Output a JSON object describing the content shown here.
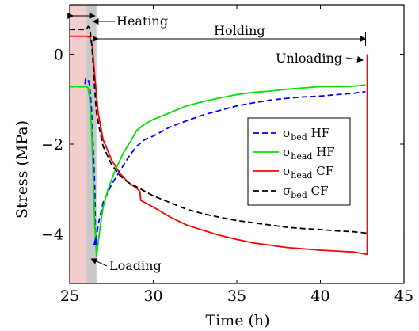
{
  "chart_data": {
    "type": "line",
    "xlabel": "Time (h)",
    "ylabel": "Stress (MPa)",
    "xlim": [
      25,
      45
    ],
    "ylim": [
      -5.1,
      1.1
    ],
    "xticks": [
      25,
      30,
      35,
      40,
      45
    ],
    "yticks": [
      0,
      -2,
      -4
    ],
    "grid": false,
    "legend_position": "right, below upper curves",
    "regions": [
      {
        "x": [
          25.0,
          26.0
        ],
        "color": "#f5cccc"
      },
      {
        "x": [
          26.0,
          26.6
        ],
        "color": "#c8c8c8"
      }
    ],
    "annotations": {
      "heating": "Heating",
      "holding": "Holding",
      "unloading": "Unloading",
      "loading": "Loading"
    },
    "series": [
      {
        "name": "σ_bed HF",
        "color": "#0000ff",
        "dash": "dashed",
        "x": [
          25.0,
          25.9,
          25.95,
          26.0,
          26.1,
          26.2,
          26.3,
          26.4,
          26.5,
          26.55,
          26.7,
          27.0,
          27.5,
          28.0,
          28.5,
          29.0,
          29.5,
          30.0,
          31.0,
          32.0,
          33.0,
          34.0,
          35.0,
          36.0,
          37.0,
          38.0,
          39.0,
          40.0,
          41.0,
          42.0,
          42.7
        ],
        "y": [
          -0.72,
          -0.72,
          -0.55,
          -0.55,
          -0.56,
          -0.7,
          -1.2,
          -2.0,
          -3.0,
          -4.2,
          -3.8,
          -3.3,
          -2.9,
          -2.6,
          -2.3,
          -2.05,
          -1.9,
          -1.82,
          -1.62,
          -1.48,
          -1.35,
          -1.25,
          -1.15,
          -1.08,
          -1.02,
          -0.98,
          -0.95,
          -0.93,
          -0.9,
          -0.87,
          -0.83
        ]
      },
      {
        "name": "σ_head HF",
        "color": "#00e000",
        "dash": "solid",
        "x": [
          25.0,
          26.0,
          26.1,
          26.2,
          26.3,
          26.4,
          26.5,
          26.6,
          26.8,
          27.0,
          27.3,
          27.7,
          28.2,
          28.7,
          29.0,
          29.5,
          30.0,
          31.0,
          32.0,
          33.0,
          34.0,
          35.0,
          36.0,
          37.0,
          38.0,
          39.0,
          40.0,
          41.0,
          42.0,
          42.7
        ],
        "y": [
          -0.72,
          -0.72,
          -0.75,
          -1.0,
          -1.6,
          -2.6,
          -3.8,
          -4.5,
          -3.9,
          -3.4,
          -3.0,
          -2.6,
          -2.2,
          -1.9,
          -1.7,
          -1.55,
          -1.45,
          -1.3,
          -1.15,
          -1.05,
          -0.97,
          -0.9,
          -0.85,
          -0.82,
          -0.78,
          -0.75,
          -0.72,
          -0.72,
          -0.71,
          -0.68
        ]
      },
      {
        "name": "σ_head CF",
        "color": "#ff0000",
        "dash": "solid",
        "x": [
          25.0,
          26.0,
          26.2,
          26.35,
          26.5,
          26.7,
          27.0,
          27.5,
          28.0,
          28.5,
          29.0,
          29.2,
          29.25,
          30.0,
          31.0,
          32.0,
          33.0,
          34.0,
          35.0,
          36.0,
          37.0,
          38.0,
          39.0,
          40.0,
          41.0,
          42.0,
          42.75,
          42.8,
          42.8
        ],
        "y": [
          0.4,
          0.4,
          0.38,
          0.2,
          -0.5,
          -1.3,
          -1.9,
          -2.35,
          -2.65,
          -2.85,
          -2.98,
          -3.05,
          -3.25,
          -3.4,
          -3.62,
          -3.8,
          -3.92,
          -4.03,
          -4.12,
          -4.2,
          -4.25,
          -4.3,
          -4.33,
          -4.36,
          -4.38,
          -4.4,
          -4.45,
          -4.45,
          0.0
        ]
      },
      {
        "name": "σ_bed CF",
        "color": "#000000",
        "dash": "dashed",
        "x": [
          25.0,
          26.0,
          26.1,
          26.2,
          26.3,
          26.4,
          26.5,
          26.6,
          26.8,
          27.0,
          27.5,
          28.0,
          28.5,
          29.0,
          29.5,
          30.0,
          31.0,
          32.0,
          33.0,
          34.0,
          35.0,
          36.0,
          37.0,
          38.0,
          39.0,
          40.0,
          41.0,
          42.0,
          42.75,
          42.8
        ],
        "y": [
          0.55,
          0.55,
          0.62,
          0.58,
          0.3,
          -0.2,
          -0.8,
          -1.3,
          -1.7,
          -2.05,
          -2.45,
          -2.7,
          -2.85,
          -2.95,
          -3.05,
          -3.15,
          -3.3,
          -3.45,
          -3.55,
          -3.63,
          -3.7,
          -3.75,
          -3.8,
          -3.85,
          -3.88,
          -3.9,
          -3.93,
          -3.95,
          -3.98,
          -3.98
        ]
      }
    ]
  }
}
